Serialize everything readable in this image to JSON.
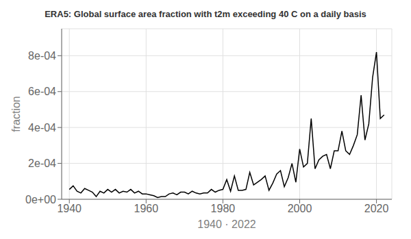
{
  "chart_data": {
    "type": "line",
    "title": "ERA5: Global surface area fraction with t2m exceeding 40 C on a daily basis",
    "xlabel": "1940 · 2022",
    "ylabel": "fraction",
    "color": "#000000",
    "grid": true,
    "x": [
      1940,
      1941,
      1942,
      1943,
      1944,
      1945,
      1946,
      1947,
      1948,
      1949,
      1950,
      1951,
      1952,
      1953,
      1954,
      1955,
      1956,
      1957,
      1958,
      1959,
      1960,
      1961,
      1962,
      1963,
      1964,
      1965,
      1966,
      1967,
      1968,
      1969,
      1970,
      1971,
      1972,
      1973,
      1974,
      1975,
      1976,
      1977,
      1978,
      1979,
      1980,
      1981,
      1982,
      1983,
      1984,
      1985,
      1986,
      1987,
      1988,
      1989,
      1990,
      1991,
      1992,
      1993,
      1994,
      1995,
      1996,
      1997,
      1998,
      1999,
      2000,
      2001,
      2002,
      2003,
      2004,
      2005,
      2006,
      2007,
      2008,
      2009,
      2010,
      2011,
      2012,
      2013,
      2014,
      2015,
      2016,
      2017,
      2018,
      2019,
      2020,
      2021,
      2022
    ],
    "values": [
      5.5e-05,
      7.5e-05,
      4.5e-05,
      3.5e-05,
      6e-05,
      5e-05,
      4e-05,
      1.5e-05,
      4.5e-05,
      3.5e-05,
      5.5e-05,
      4e-05,
      5.5e-05,
      3.5e-05,
      4.5e-05,
      4e-05,
      5.5e-05,
      3.5e-05,
      4.5e-05,
      3e-05,
      3e-05,
      2.5e-05,
      2e-05,
      1e-05,
      1.5e-05,
      1.5e-05,
      3e-05,
      3.5e-05,
      2.5e-05,
      4e-05,
      4e-05,
      3e-05,
      4.5e-05,
      3.5e-05,
      3e-05,
      3.5e-05,
      3.5e-05,
      5.5e-05,
      4e-05,
      5e-05,
      5.5e-05,
      0.00011,
      4.5e-05,
      0.00013,
      5e-05,
      5e-05,
      5.5e-05,
      0.00015,
      8e-05,
      9.5e-05,
      0.00011,
      0.00013,
      5e-05,
      9e-05,
      0.00014,
      0.00016,
      7e-05,
      0.00012,
      0.0002,
      9.5e-05,
      0.00028,
      0.00018,
      0.0002,
      0.00045,
      0.00017,
      0.00022,
      0.00024,
      0.00025,
      0.00017,
      0.00027,
      0.00027,
      0.00038,
      0.00027,
      0.00025,
      0.0003,
      0.00036,
      0.00058,
      0.00033,
      0.00042,
      0.00068,
      0.00082,
      0.00045,
      0.00047
    ],
    "xlim": [
      1938,
      2024
    ],
    "xticks": [
      1940,
      1960,
      1980,
      2000,
      2020
    ],
    "ylim": [
      0,
      0.00095
    ],
    "yticks": [
      {
        "value": 0,
        "label": "0e+00"
      },
      {
        "value": 0.0002,
        "label": "2e-04"
      },
      {
        "value": 0.0004,
        "label": "4e-04"
      },
      {
        "value": 0.0006,
        "label": "6e-04"
      },
      {
        "value": 0.0008,
        "label": "8e-04"
      }
    ]
  }
}
